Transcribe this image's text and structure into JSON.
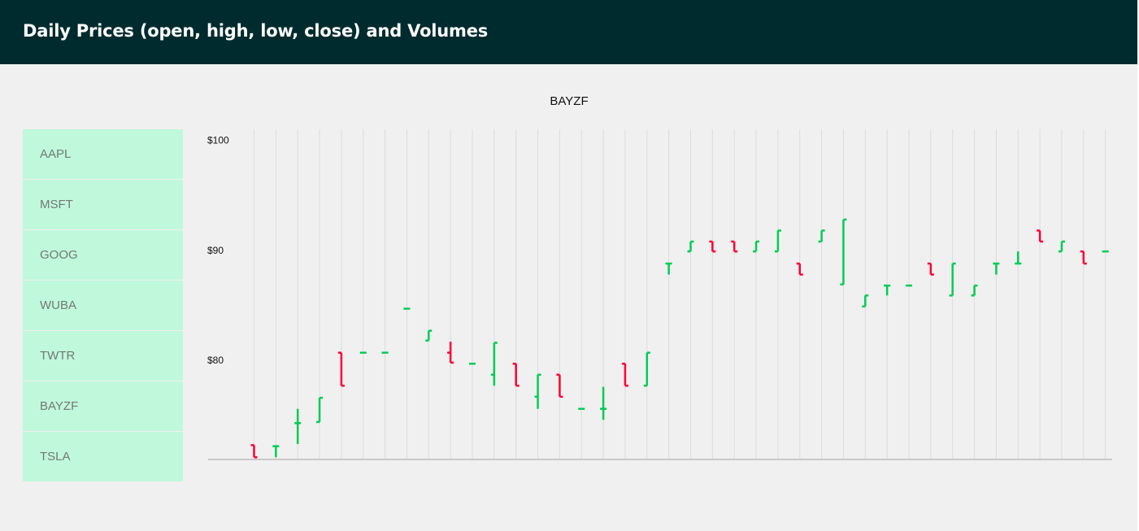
{
  "header": {
    "title": "Daily Prices (open, high, low, close) and Volumes"
  },
  "sidebar": {
    "items": [
      "AAPL",
      "MSFT",
      "GOOG",
      "WUBA",
      "TWTR",
      "BAYZF",
      "TSLA"
    ]
  },
  "colors": {
    "header_bg": "#002b2e",
    "sidebar_bg": "#c0f8dc",
    "up": "#00cc55",
    "down": "#ff0033",
    "page_bg": "#f0f0f0"
  },
  "chart_data": {
    "type": "ohlc",
    "title": "BAYZF",
    "ylim": [
      71,
      101
    ],
    "yticks": [
      {
        "value": 100,
        "label": "$100"
      },
      {
        "value": 90,
        "label": "$90"
      },
      {
        "value": 80,
        "label": "$80"
      }
    ],
    "grid": true,
    "bars": [
      {
        "open": 72.3,
        "high": 72.3,
        "low": 71.2,
        "close": 71.2
      },
      {
        "open": 72.2,
        "high": 72.3,
        "low": 71.2,
        "close": 72.2
      },
      {
        "open": 74.3,
        "high": 75.6,
        "low": 72.4,
        "close": 74.3
      },
      {
        "open": 74.4,
        "high": 76.6,
        "low": 74.4,
        "close": 76.6
      },
      {
        "open": 80.7,
        "high": 80.7,
        "low": 77.7,
        "close": 77.7
      },
      {
        "open": 80.7,
        "high": 80.7,
        "low": 80.7,
        "close": 80.7
      },
      {
        "open": 80.7,
        "high": 80.7,
        "low": 80.7,
        "close": 80.7
      },
      {
        "open": 84.7,
        "high": 84.7,
        "low": 84.7,
        "close": 84.7
      },
      {
        "open": 81.8,
        "high": 82.7,
        "low": 81.8,
        "close": 82.7
      },
      {
        "open": 80.7,
        "high": 81.7,
        "low": 79.8,
        "close": 79.8
      },
      {
        "open": 79.7,
        "high": 79.7,
        "low": 79.7,
        "close": 79.7
      },
      {
        "open": 78.7,
        "high": 81.6,
        "low": 77.7,
        "close": 81.6
      },
      {
        "open": 79.7,
        "high": 79.7,
        "low": 77.7,
        "close": 77.7
      },
      {
        "open": 76.7,
        "high": 78.7,
        "low": 75.6,
        "close": 78.7
      },
      {
        "open": 78.7,
        "high": 78.7,
        "low": 76.7,
        "close": 76.7
      },
      {
        "open": 75.6,
        "high": 75.6,
        "low": 75.6,
        "close": 75.6
      },
      {
        "open": 75.6,
        "high": 77.6,
        "low": 74.6,
        "close": 75.6
      },
      {
        "open": 79.7,
        "high": 79.7,
        "low": 77.7,
        "close": 77.7
      },
      {
        "open": 77.7,
        "high": 80.7,
        "low": 77.7,
        "close": 80.7
      },
      {
        "open": 88.8,
        "high": 88.8,
        "low": 87.8,
        "close": 88.8
      },
      {
        "open": 89.9,
        "high": 90.8,
        "low": 89.9,
        "close": 90.8
      },
      {
        "open": 90.8,
        "high": 90.8,
        "low": 89.9,
        "close": 89.9
      },
      {
        "open": 90.8,
        "high": 90.8,
        "low": 89.9,
        "close": 89.9
      },
      {
        "open": 89.9,
        "high": 90.8,
        "low": 89.9,
        "close": 90.8
      },
      {
        "open": 89.9,
        "high": 91.8,
        "low": 89.9,
        "close": 91.8
      },
      {
        "open": 88.8,
        "high": 88.8,
        "low": 87.8,
        "close": 87.8
      },
      {
        "open": 90.8,
        "high": 91.8,
        "low": 90.8,
        "close": 91.8
      },
      {
        "open": 86.9,
        "high": 92.8,
        "low": 86.9,
        "close": 92.8
      },
      {
        "open": 84.9,
        "high": 85.9,
        "low": 84.9,
        "close": 85.9
      },
      {
        "open": 86.8,
        "high": 86.8,
        "low": 85.9,
        "close": 86.8
      },
      {
        "open": 86.8,
        "high": 86.8,
        "low": 86.8,
        "close": 86.8
      },
      {
        "open": 88.8,
        "high": 88.8,
        "low": 87.8,
        "close": 87.8
      },
      {
        "open": 85.9,
        "high": 88.8,
        "low": 85.9,
        "close": 88.8
      },
      {
        "open": 85.9,
        "high": 86.8,
        "low": 85.9,
        "close": 86.8
      },
      {
        "open": 88.8,
        "high": 88.8,
        "low": 87.8,
        "close": 88.8
      },
      {
        "open": 88.8,
        "high": 89.9,
        "low": 88.8,
        "close": 88.8
      },
      {
        "open": 91.8,
        "high": 91.8,
        "low": 90.8,
        "close": 90.8
      },
      {
        "open": 89.9,
        "high": 90.8,
        "low": 89.9,
        "close": 90.8
      },
      {
        "open": 89.9,
        "high": 89.9,
        "low": 88.8,
        "close": 88.8
      },
      {
        "open": 89.9,
        "high": 89.9,
        "low": 89.9,
        "close": 89.9
      }
    ]
  }
}
